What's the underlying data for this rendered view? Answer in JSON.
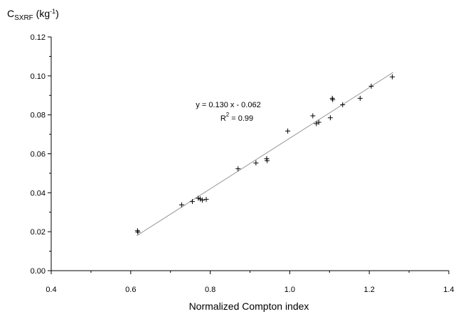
{
  "chart_data": {
    "type": "scatter",
    "title": "",
    "xlabel": "Normalized Compton index",
    "ylabel": {
      "base": "C",
      "subscript": "SXRF",
      "unit_prefix": " (kg",
      "unit_superscript": "-1",
      "unit_suffix": ")"
    },
    "xlim": [
      0.4,
      1.4
    ],
    "ylim": [
      0.0,
      0.12
    ],
    "xticks": [
      0.4,
      0.6,
      0.8,
      1.0,
      1.2,
      1.4
    ],
    "xtick_labels": [
      "0.4",
      "0.6",
      "0.8",
      "1.0",
      "1.2",
      "1.4"
    ],
    "yticks": [
      0.0,
      0.02,
      0.04,
      0.06,
      0.08,
      0.1,
      0.12
    ],
    "ytick_labels": [
      "0.00",
      "0.02",
      "0.04",
      "0.06",
      "0.08",
      "0.10",
      "0.12"
    ],
    "grid": false,
    "marker": "plus",
    "points": [
      {
        "x": 0.617,
        "y": 0.0205
      },
      {
        "x": 0.618,
        "y": 0.0198
      },
      {
        "x": 0.728,
        "y": 0.0338
      },
      {
        "x": 0.755,
        "y": 0.0355
      },
      {
        "x": 0.77,
        "y": 0.0372
      },
      {
        "x": 0.775,
        "y": 0.0368
      },
      {
        "x": 0.78,
        "y": 0.0362
      },
      {
        "x": 0.79,
        "y": 0.0366
      },
      {
        "x": 0.87,
        "y": 0.0523
      },
      {
        "x": 0.915,
        "y": 0.0553
      },
      {
        "x": 0.942,
        "y": 0.0575
      },
      {
        "x": 0.943,
        "y": 0.0565
      },
      {
        "x": 0.995,
        "y": 0.0717
      },
      {
        "x": 1.058,
        "y": 0.0795
      },
      {
        "x": 1.067,
        "y": 0.0755
      },
      {
        "x": 1.073,
        "y": 0.0762
      },
      {
        "x": 1.102,
        "y": 0.0785
      },
      {
        "x": 1.107,
        "y": 0.0885
      },
      {
        "x": 1.108,
        "y": 0.0878
      },
      {
        "x": 1.133,
        "y": 0.0852
      },
      {
        "x": 1.177,
        "y": 0.0885
      },
      {
        "x": 1.205,
        "y": 0.0947
      },
      {
        "x": 1.258,
        "y": 0.0995
      }
    ],
    "fit_line": {
      "slope": 0.13,
      "intercept": -0.062,
      "x_start": 0.615,
      "x_end": 1.26,
      "color": "#999999"
    },
    "annotation": {
      "equation": "y = 0.130 x - 0.062",
      "r2_label": "R",
      "r2_superscript": "2",
      "r2_value": " = 0.99"
    }
  }
}
